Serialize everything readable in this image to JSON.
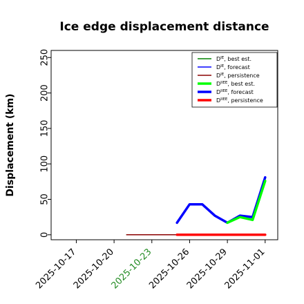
{
  "chart_data": {
    "type": "line",
    "title": "Ice edge displacement distance",
    "xlabel": "",
    "ylabel": "Displacement (km)",
    "xlim": [
      "2025-10-15",
      "2025-11-02"
    ],
    "ylim": [
      -7,
      260
    ],
    "yticks": [
      0,
      50,
      100,
      150,
      200,
      250
    ],
    "xticks": [
      "2025-10-17",
      "2025-10-20",
      "2025-10-23",
      "2025-10-26",
      "2025-10-29",
      "2025-11-01"
    ],
    "xtick_colors": [
      "#000000",
      "#000000",
      "#228b22",
      "#000000",
      "#000000",
      "#000000"
    ],
    "grid": false,
    "legend_position": "top-right",
    "series": [
      {
        "name": "D^IE, best est.",
        "color": "#008000",
        "linewidth": "thin",
        "x": [
          "2025-10-21",
          "2025-10-22",
          "2025-10-23",
          "2025-10-24",
          "2025-10-25",
          "2025-10-26",
          "2025-10-27",
          "2025-10-28",
          "2025-10-29",
          "2025-10-30",
          "2025-10-31",
          "2025-11-01"
        ],
        "y": [
          0,
          0,
          0,
          0,
          0,
          0,
          0,
          0,
          0,
          0,
          0,
          0
        ]
      },
      {
        "name": "D^IE, forecast",
        "color": "#0000ff",
        "linewidth": "thin",
        "x": [
          "2025-10-25"
        ],
        "y": [
          0
        ]
      },
      {
        "name": "D^IE, persistence",
        "color": "#8b0000",
        "linewidth": "thin",
        "x": [
          "2025-10-21",
          "2025-10-22",
          "2025-10-23",
          "2025-10-24",
          "2025-10-25"
        ],
        "y": [
          0,
          0,
          0,
          0,
          0
        ]
      },
      {
        "name": "D^IIEE, best est.",
        "color": "#00ff00",
        "linewidth": "thick",
        "x": [
          "2025-10-29",
          "2025-10-30",
          "2025-10-31",
          "2025-11-01"
        ],
        "y": [
          17,
          25,
          21,
          76
        ]
      },
      {
        "name": "D^IIEE, forecast",
        "color": "#0000ff",
        "linewidth": "thick",
        "x": [
          "2025-10-25",
          "2025-10-26",
          "2025-10-27",
          "2025-10-28",
          "2025-10-29",
          "2025-10-30",
          "2025-10-31",
          "2025-11-01"
        ],
        "y": [
          17,
          43,
          43,
          27,
          17,
          27,
          25,
          81
        ]
      },
      {
        "name": "D^IIEE, persistence",
        "color": "#ff0000",
        "linewidth": "thick",
        "x": [
          "2025-10-25",
          "2025-10-26",
          "2025-10-27",
          "2025-10-28",
          "2025-10-29",
          "2025-10-30",
          "2025-10-31",
          "2025-11-01"
        ],
        "y": [
          0,
          0,
          0,
          0,
          0,
          0,
          0,
          0
        ]
      }
    ],
    "legend": [
      {
        "base": "D",
        "sup": "IE",
        "text": ", best est.",
        "color": "#008000",
        "linewidth": "thin"
      },
      {
        "base": "D",
        "sup": "IE",
        "text": ", forecast",
        "color": "#0000ff",
        "linewidth": "thin"
      },
      {
        "base": "D",
        "sup": "IE",
        "text": ", persistence",
        "color": "#8b0000",
        "linewidth": "thin"
      },
      {
        "base": "D",
        "sup": "IIEE",
        "text": ", best est.",
        "color": "#00ff00",
        "linewidth": "thick"
      },
      {
        "base": "D",
        "sup": "IIEE",
        "text": ", forecast",
        "color": "#0000ff",
        "linewidth": "thick"
      },
      {
        "base": "D",
        "sup": "IIEE",
        "text": ", persistence",
        "color": "#ff0000",
        "linewidth": "thick"
      }
    ]
  }
}
